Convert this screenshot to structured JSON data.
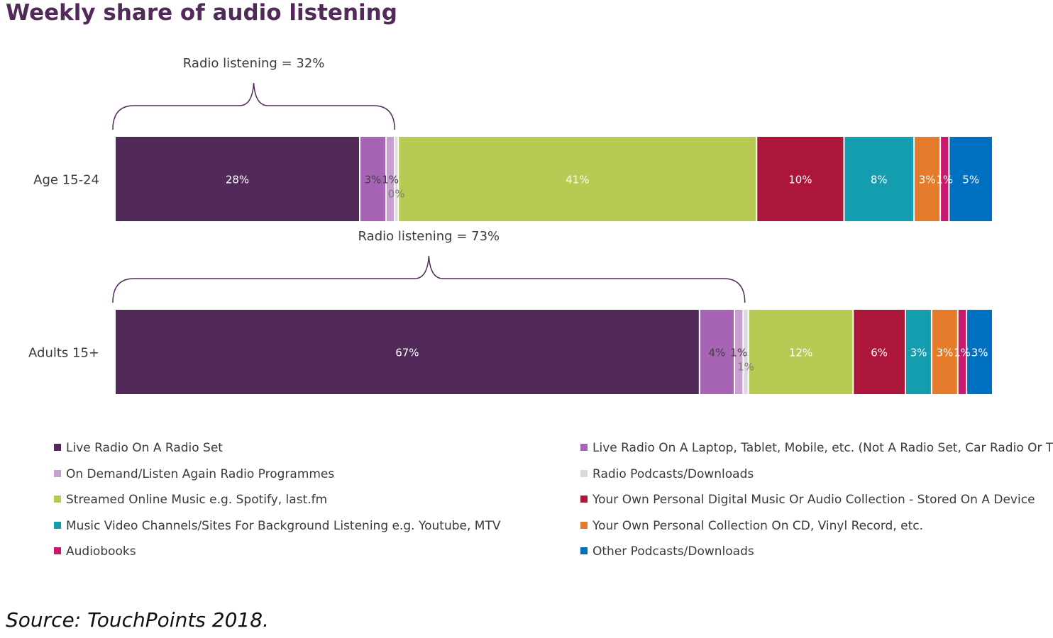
{
  "chart_data": {
    "type": "bar",
    "orientation": "horizontal",
    "stacked": true,
    "title": "Weekly share of audio listening",
    "xlabel": "",
    "ylabel": "",
    "xlim": [
      0,
      100
    ],
    "unit": "%",
    "grid": false,
    "legend_position": "bottom",
    "categories": [
      "Age 15-24",
      "Adults 15+"
    ],
    "series": [
      {
        "name": "Live Radio On A Radio Set",
        "color": "#522a5a",
        "values": [
          28,
          67
        ],
        "labels": [
          "28%",
          "67%"
        ],
        "label_color": "#ffffff"
      },
      {
        "name": "Live Radio On A Laptop, Tablet, Mobile, etc. (Not A Radio Set, Car Radio Or TV Set)",
        "color": "#a864b4",
        "values": [
          3,
          4
        ],
        "labels": [
          "3%",
          "4%"
        ],
        "label_color": "#404040"
      },
      {
        "name": "On Demand/Listen Again Radio Programmes",
        "color": "#c99ed0",
        "values": [
          1,
          1
        ],
        "labels": [
          "1%",
          "1%"
        ],
        "label_color": "#404040"
      },
      {
        "name": "Radio Podcasts/Downloads",
        "color": "#dcd8e0",
        "values": [
          0.4,
          0.6
        ],
        "labels": [
          "0%",
          "1%"
        ],
        "label_color": "#7a7a7a"
      },
      {
        "name": "Streamed Online Music e.g. Spotify, last.fm",
        "color": "#b8c954",
        "values": [
          41,
          12
        ],
        "labels": [
          "41%",
          "12%"
        ],
        "label_color": "#ffffff"
      },
      {
        "name": "Your Own Personal Digital Music Or Audio Collection - Stored On A Device",
        "color": "#ad163b",
        "values": [
          10,
          6
        ],
        "labels": [
          "10%",
          "6%"
        ],
        "label_color": "#ffffff"
      },
      {
        "name": "Music Video Channels/Sites For Background Listening e.g. Youtube, MTV",
        "color": "#139daf",
        "values": [
          8,
          3
        ],
        "labels": [
          "8%",
          "3%"
        ],
        "label_color": "#ffffff"
      },
      {
        "name": "Your Own Personal Collection On CD, Vinyl Record, etc.",
        "color": "#e57c2b",
        "values": [
          3,
          3
        ],
        "labels": [
          "3%",
          "3%"
        ],
        "label_color": "#ffffff"
      },
      {
        "name": "Audiobooks",
        "color": "#c8196e",
        "values": [
          1,
          1
        ],
        "labels": [
          "1%",
          "1%"
        ],
        "label_color": "#ffffff"
      },
      {
        "name": "Other Podcasts/Downloads",
        "color": "#0071c0",
        "values": [
          5,
          3
        ],
        "labels": [
          "5%",
          "3%"
        ],
        "label_color": "#ffffff"
      }
    ],
    "annotations": [
      {
        "text": "Radio listening = 32%",
        "category": "Age 15-24",
        "span_series": [
          0,
          3
        ],
        "value": 32
      },
      {
        "text": "Radio listening = 73%",
        "category": "Adults 15+",
        "span_series": [
          0,
          3
        ],
        "value": 73
      }
    ],
    "legend_order": [
      0,
      1,
      2,
      3,
      4,
      5,
      6,
      7,
      8,
      9
    ]
  },
  "source": "Source: TouchPoints 2018."
}
